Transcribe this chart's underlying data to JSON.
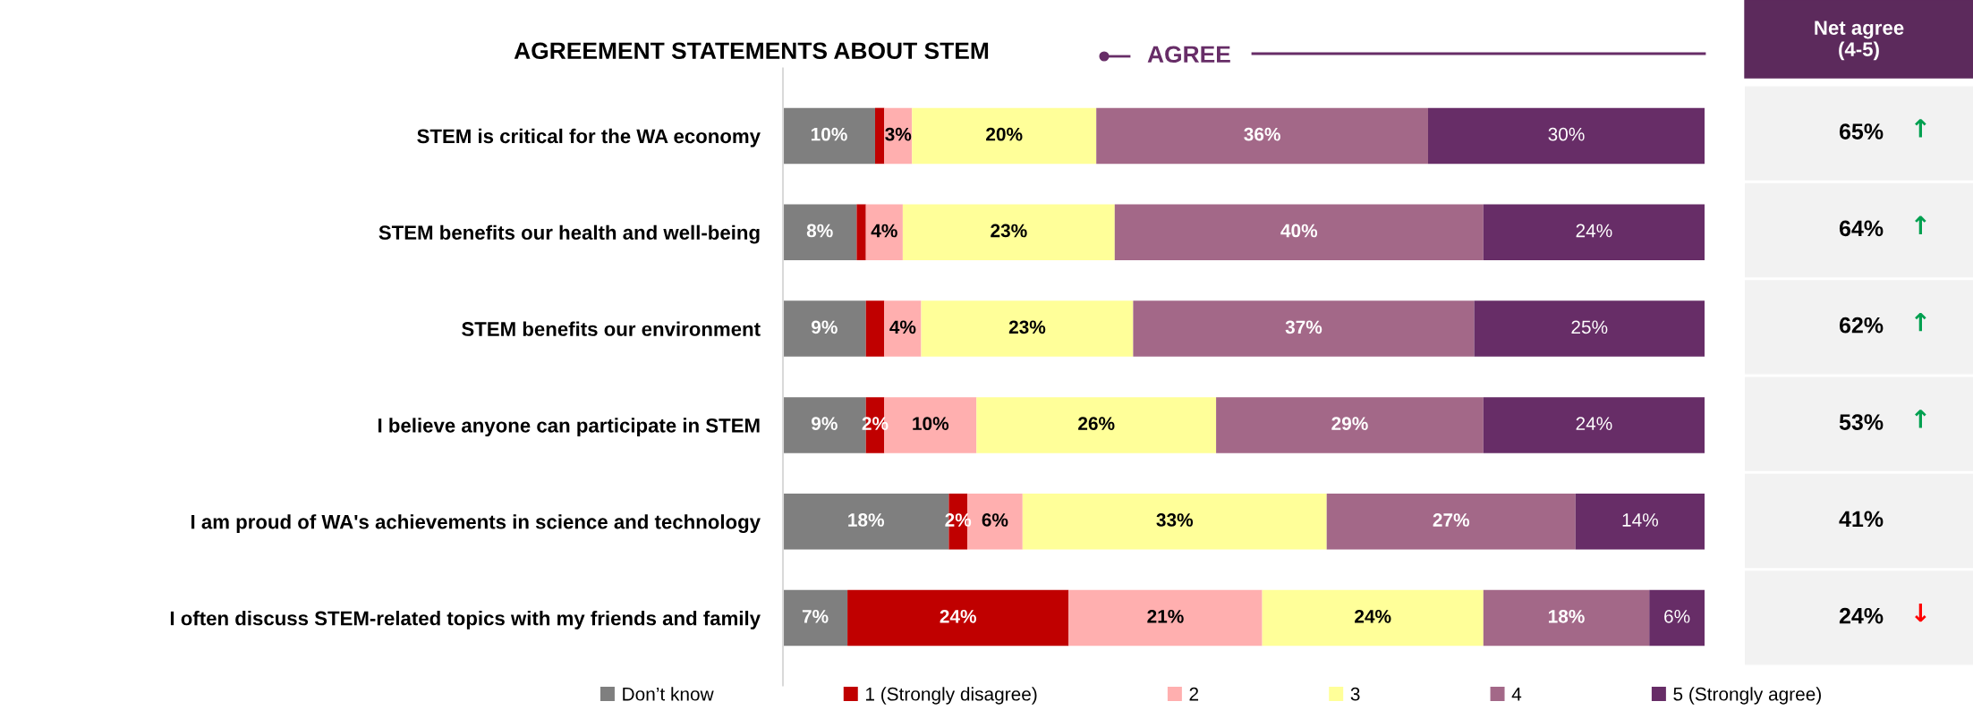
{
  "chart_data": [
    {
      "type": "bar",
      "orientation": "horizontal",
      "stacked": true,
      "title": "AGREEMENT STATEMENTS ABOUT STEM",
      "annotations": [
        "AGREE"
      ],
      "legend": "bottom",
      "grid": false,
      "tick_labels": "y",
      "categories": [
        "STEM is critical for the WA economy",
        "STEM benefits our health and well-being",
        "STEM benefits our environment",
        "I believe anyone can participate in STEM",
        "I am proud of WA's achievements in science and technology",
        "I often discuss STEM-related topics with my friends and family"
      ],
      "series": [
        {
          "name": "Don’t know",
          "color": "#7f7f7f",
          "values": [
            10,
            8,
            9,
            9,
            18,
            7
          ],
          "value_labels": [
            "10%",
            "8%",
            "9%",
            "9%",
            "18%",
            "7%"
          ]
        },
        {
          "name": "1 (Strongly disagree)",
          "color": "#c00000",
          "values": [
            1,
            1,
            2,
            2,
            2,
            24
          ],
          "value_labels": [
            null,
            null,
            null,
            "2%",
            "2%",
            "24%"
          ]
        },
        {
          "name": "2",
          "color": "#ffafaf",
          "values": [
            3,
            4,
            4,
            10,
            6,
            21
          ],
          "value_labels": [
            "3%",
            "4%",
            "4%",
            "10%",
            "6%",
            "21%"
          ]
        },
        {
          "name": "3",
          "color": "#ffff99",
          "values": [
            20,
            23,
            23,
            26,
            33,
            24
          ],
          "value_labels": [
            "20%",
            "23%",
            "23%",
            "26%",
            "33%",
            "24%"
          ]
        },
        {
          "name": "4",
          "color": "#a36888",
          "values": [
            36,
            40,
            37,
            29,
            27,
            18
          ],
          "value_labels": [
            "36%",
            "40%",
            "37%",
            "29%",
            "27%",
            "18%"
          ]
        },
        {
          "name": "5 (Strongly agree)",
          "color": "#672d67",
          "values": [
            30,
            24,
            25,
            24,
            14,
            6
          ],
          "value_labels": [
            "30%",
            "24%",
            "25%",
            "24%",
            "14%",
            "6%"
          ]
        }
      ]
    },
    {
      "type": "other",
      "title": "Net agree\n(4-5)",
      "categories": [
        null,
        null,
        null,
        null,
        null,
        null
      ],
      "value_labels": [
        "65%",
        "64%",
        "62%",
        "53%",
        "41%",
        "24%"
      ],
      "colors": [
        "#00a050",
        "#00a050",
        "#00a050",
        "#00a050",
        null,
        "#ff0000"
      ],
      "annotations": [
        "↑",
        "↑",
        "↑",
        "↑",
        null,
        "↓"
      ]
    }
  ]
}
